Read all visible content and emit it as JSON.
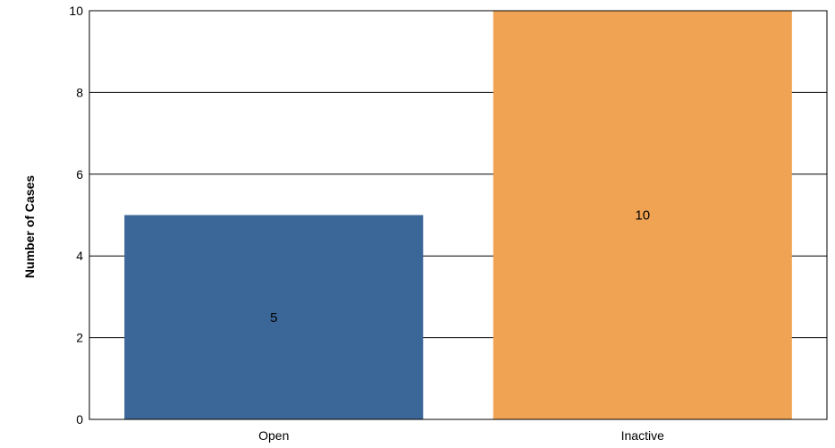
{
  "chart_data": {
    "type": "bar",
    "categories": [
      "Open",
      "Inactive"
    ],
    "values": [
      5,
      10
    ],
    "data_labels": [
      "5",
      "10"
    ],
    "colors": [
      "#3a6698",
      "#f0a352"
    ],
    "title": "",
    "xlabel": "",
    "ylabel": "Number of Cases",
    "ylim": [
      0,
      10
    ],
    "yticks": [
      0,
      2,
      4,
      6,
      8,
      10
    ],
    "ytick_labels": [
      "0",
      "2",
      "4",
      "6",
      "8",
      "10"
    ],
    "grid": true,
    "legend": "none"
  }
}
